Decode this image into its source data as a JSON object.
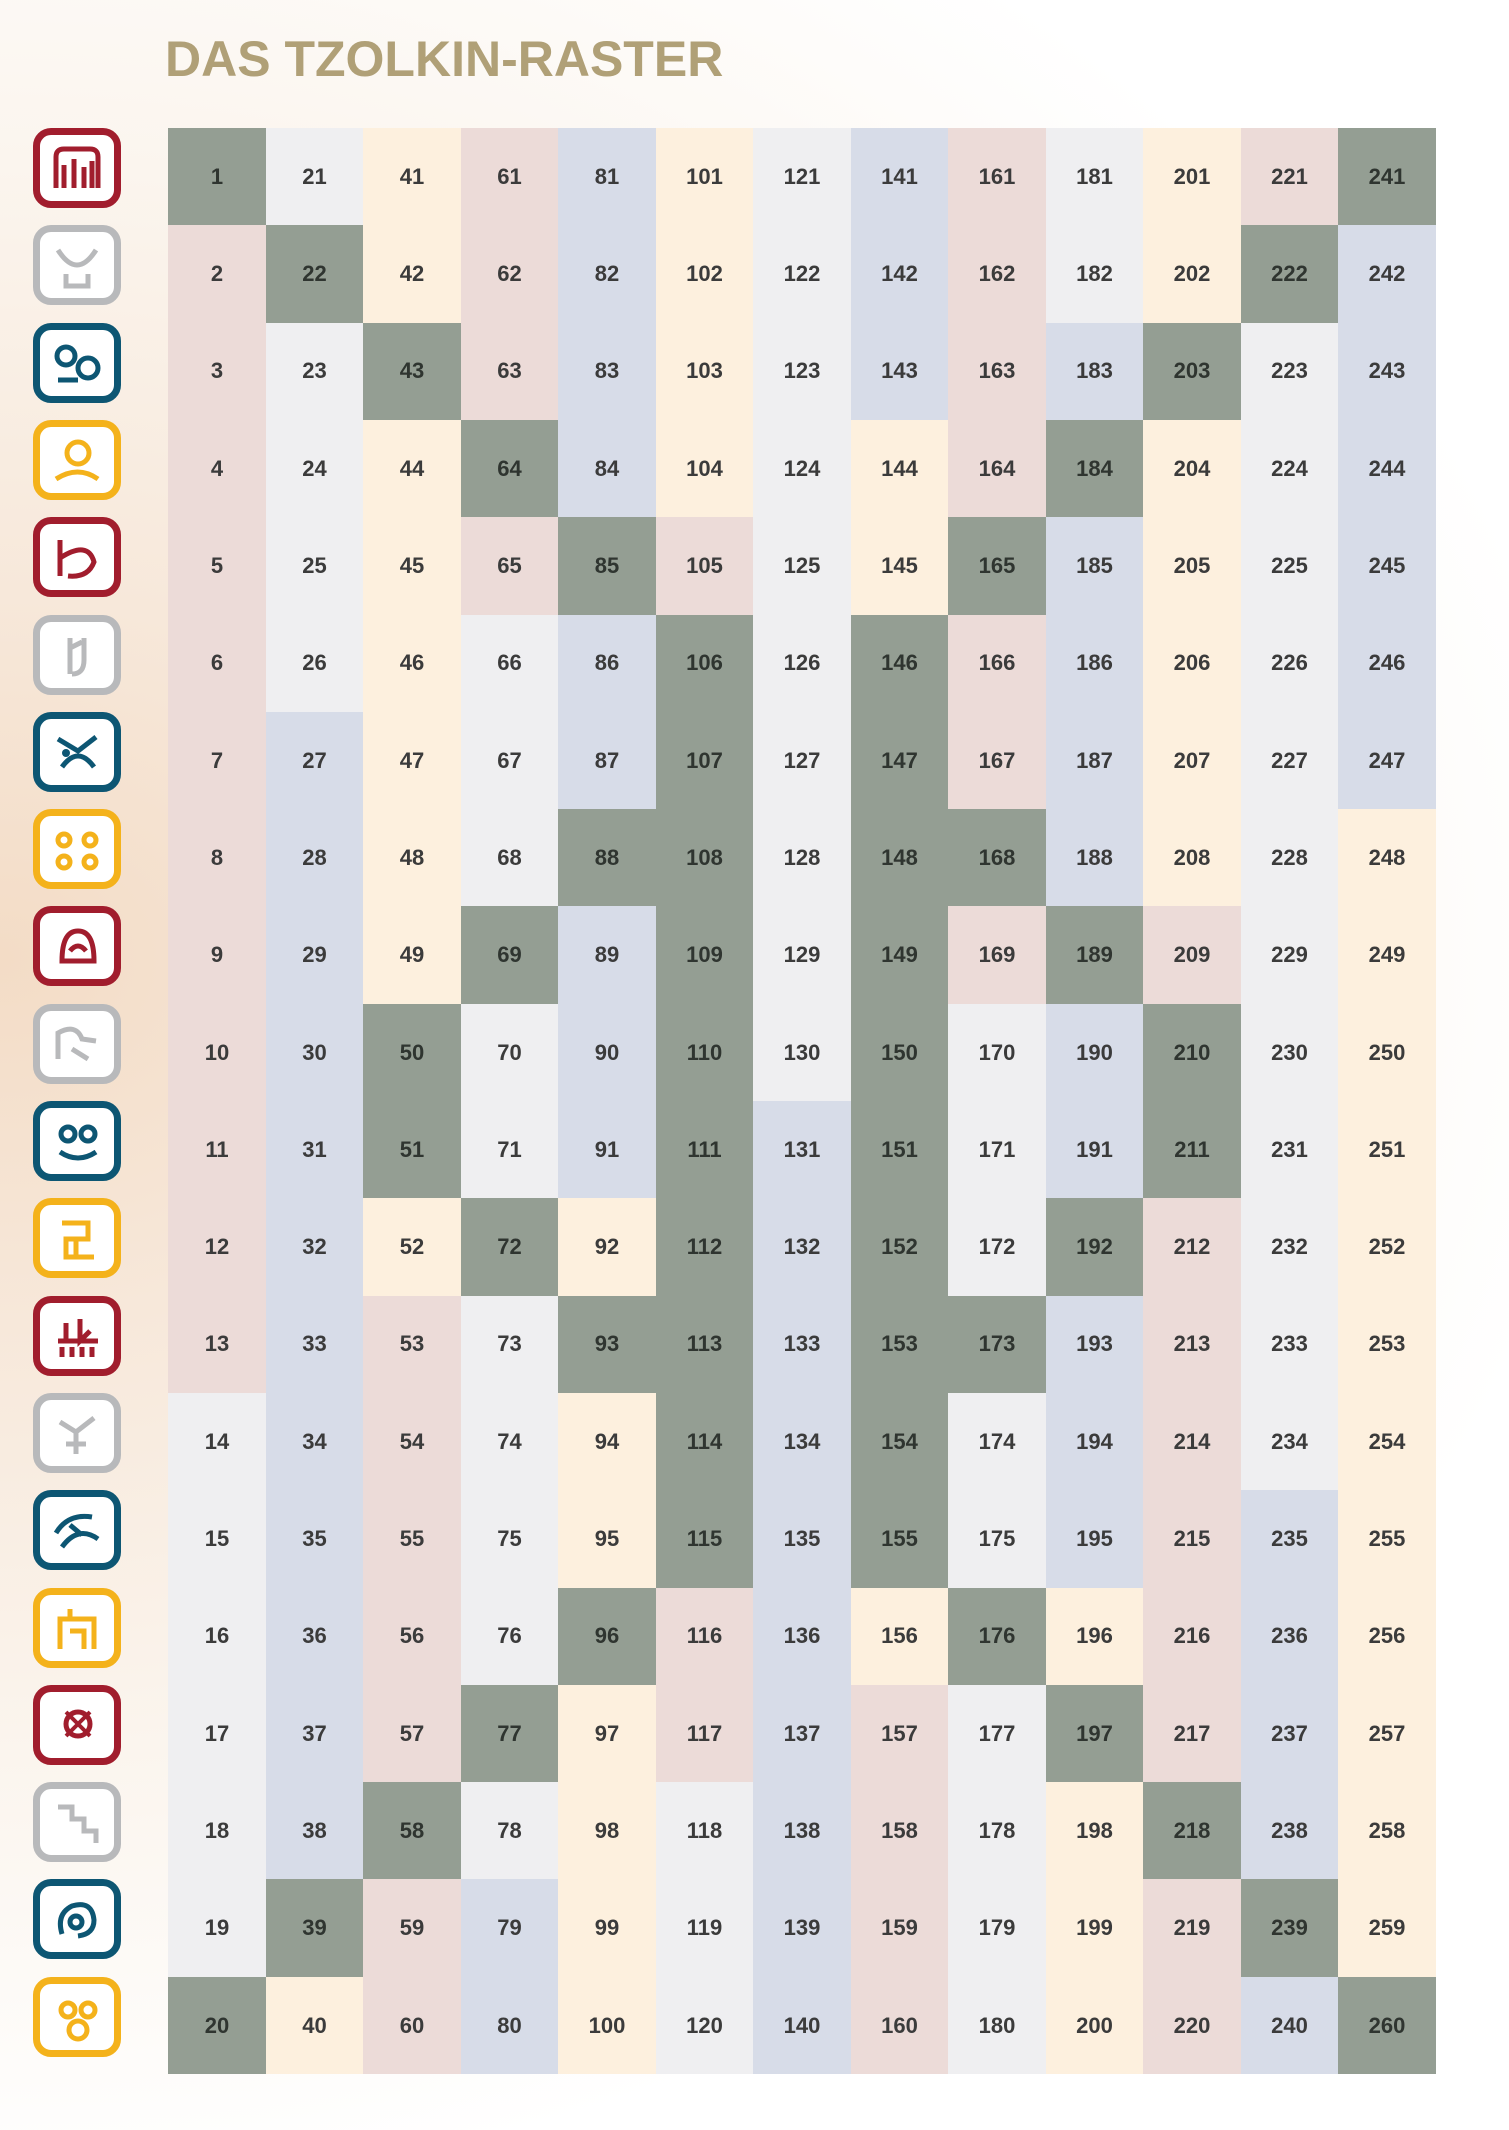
{
  "title": "DAS TZOLKIN-RASTER",
  "colors": {
    "red": "#a11d2d",
    "white": "#b8b9bb",
    "blue": "#0d5673",
    "yellow": "#f4b21b",
    "cell_white": "#efeff1",
    "cell_red": "#ecdbd8",
    "cell_blue": "#d7dce8",
    "cell_yellow": "#fdf0de",
    "cell_green": "#949e93"
  },
  "glyphs": [
    {
      "name": "red-dragon-glyph-icon",
      "color": "red"
    },
    {
      "name": "white-wind-glyph-icon",
      "color": "white"
    },
    {
      "name": "blue-night-glyph-icon",
      "color": "blue"
    },
    {
      "name": "yellow-seed-glyph-icon",
      "color": "yellow"
    },
    {
      "name": "red-serpent-glyph-icon",
      "color": "red"
    },
    {
      "name": "white-worldbridger-glyph-icon",
      "color": "white"
    },
    {
      "name": "blue-hand-glyph-icon",
      "color": "blue"
    },
    {
      "name": "yellow-star-glyph-icon",
      "color": "yellow"
    },
    {
      "name": "red-moon-glyph-icon",
      "color": "red"
    },
    {
      "name": "white-dog-glyph-icon",
      "color": "white"
    },
    {
      "name": "blue-monkey-glyph-icon",
      "color": "blue"
    },
    {
      "name": "yellow-human-glyph-icon",
      "color": "yellow"
    },
    {
      "name": "red-skywalker-glyph-icon",
      "color": "red"
    },
    {
      "name": "white-wizard-glyph-icon",
      "color": "white"
    },
    {
      "name": "blue-eagle-glyph-icon",
      "color": "blue"
    },
    {
      "name": "yellow-warrior-glyph-icon",
      "color": "yellow"
    },
    {
      "name": "red-earth-glyph-icon",
      "color": "red"
    },
    {
      "name": "white-mirror-glyph-icon",
      "color": "white"
    },
    {
      "name": "blue-storm-glyph-icon",
      "color": "blue"
    },
    {
      "name": "yellow-sun-glyph-icon",
      "color": "yellow"
    }
  ],
  "grid": {
    "rows": 20,
    "columns": 13,
    "green_cells": [
      1,
      20,
      22,
      39,
      43,
      58,
      50,
      51,
      64,
      77,
      69,
      72,
      85,
      96,
      88,
      93,
      106,
      107,
      108,
      109,
      110,
      111,
      112,
      113,
      114,
      115,
      146,
      147,
      148,
      149,
      150,
      151,
      152,
      153,
      154,
      155,
      165,
      176,
      168,
      173,
      184,
      197,
      189,
      192,
      203,
      218,
      210,
      211,
      222,
      239,
      241,
      260
    ],
    "red_cells": [
      2,
      3,
      4,
      5,
      6,
      7,
      8,
      9,
      10,
      11,
      12,
      13,
      53,
      54,
      55,
      56,
      57,
      59,
      60,
      61,
      62,
      63,
      65,
      105,
      116,
      117,
      157,
      158,
      159,
      160,
      161,
      162,
      163,
      164,
      166,
      167,
      169,
      209,
      212,
      213,
      214,
      215,
      216,
      217,
      219,
      220,
      221
    ],
    "blue_cells": [
      27,
      28,
      29,
      30,
      31,
      32,
      33,
      34,
      35,
      36,
      37,
      38,
      79,
      80,
      81,
      82,
      83,
      84,
      86,
      87,
      89,
      90,
      91,
      131,
      132,
      133,
      134,
      135,
      136,
      137,
      138,
      139,
      140,
      141,
      142,
      143,
      183,
      185,
      186,
      187,
      188,
      190,
      191,
      193,
      194,
      195,
      235,
      236,
      237,
      238,
      240,
      242,
      243,
      244,
      245,
      246,
      247
    ],
    "yellow_cells": [
      40,
      41,
      42,
      44,
      45,
      46,
      47,
      48,
      49,
      52,
      92,
      94,
      95,
      97,
      98,
      99,
      100,
      101,
      102,
      103,
      104,
      144,
      145,
      156,
      196,
      198,
      199,
      200,
      201,
      202,
      204,
      205,
      206,
      207,
      208,
      248,
      249,
      250,
      251,
      252,
      253,
      254,
      255,
      256,
      257,
      258,
      259
    ]
  }
}
